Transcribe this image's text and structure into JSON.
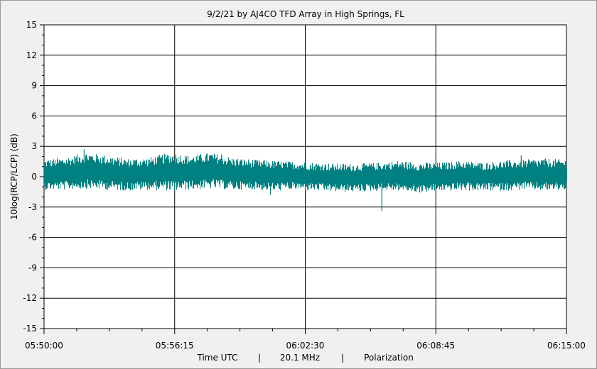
{
  "chart_data": {
    "type": "line",
    "title": "9/2/21  by  AJ4CO TFD Array  in  High Springs, FL",
    "ylabel": "10log(RCP/LCP)  (dB)",
    "xlabel_parts": [
      "Time UTC",
      "|",
      "20.1 MHz",
      "|",
      "Polarization"
    ],
    "ylim": [
      -15,
      15
    ],
    "y_ticks": [
      "15",
      "12",
      "9",
      "6",
      "3",
      "0",
      "-3",
      "-6",
      "-9",
      "-12",
      "-15"
    ],
    "x_ticks": [
      "05:50:00",
      "05:56:15",
      "06:02:30",
      "06:08:45",
      "06:15:00"
    ],
    "grid": true,
    "series": [
      {
        "color": "#008080",
        "x": [
          "05:50:00",
          "05:51:00",
          "05:52:00",
          "05:53:00",
          "05:54:00",
          "05:55:00",
          "05:56:00",
          "05:57:00",
          "05:58:00",
          "05:59:00",
          "06:00:00",
          "06:01:00",
          "06:02:00",
          "06:03:00",
          "06:04:00",
          "06:05:00",
          "06:06:00",
          "06:07:00",
          "06:08:00",
          "06:09:00",
          "06:10:00",
          "06:11:00",
          "06:12:00",
          "06:13:00",
          "06:14:00",
          "06:15:00"
        ],
        "values": [
          0.2,
          0.3,
          0.6,
          0.4,
          0.2,
          0.3,
          0.5,
          0.4,
          0.6,
          0.3,
          0.2,
          0.1,
          0.1,
          0.0,
          -0.1,
          -0.1,
          0.0,
          0.1,
          -0.1,
          0.0,
          0.1,
          0.0,
          0.1,
          0.2,
          0.2,
          0.2
        ],
        "band": [
          1.5,
          1.6,
          1.8,
          1.7,
          1.6,
          1.6,
          1.9,
          1.7,
          1.8,
          1.6,
          1.5,
          1.5,
          1.4,
          1.4,
          1.4,
          1.4,
          1.4,
          1.5,
          1.5,
          1.4,
          1.5,
          1.4,
          1.5,
          1.5,
          1.6,
          1.5
        ],
        "spikes": [
          {
            "x": "05:51:55",
            "y": 2.7
          },
          {
            "x": "05:56:15",
            "y": -1.3
          },
          {
            "x": "05:58:30",
            "y": 2.2
          },
          {
            "x": "06:00:50",
            "y": -1.8
          },
          {
            "x": "06:06:10",
            "y": -3.4
          },
          {
            "x": "06:07:20",
            "y": -1.2
          },
          {
            "x": "06:12:50",
            "y": 2.1
          }
        ]
      }
    ]
  }
}
